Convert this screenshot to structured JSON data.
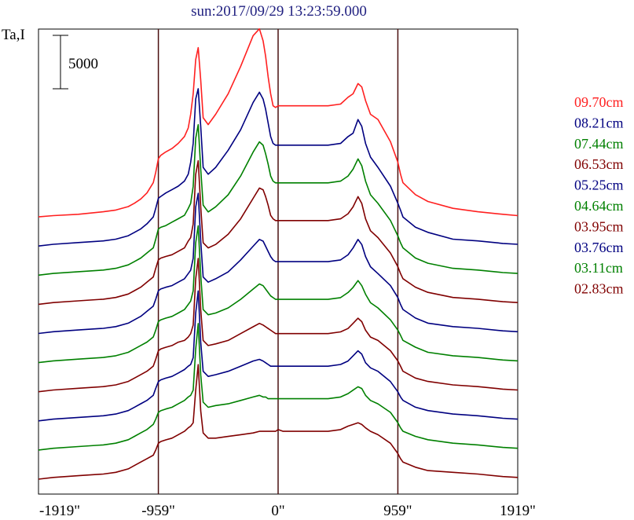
{
  "chart_data": {
    "type": "line",
    "title": "sun:2017/09/29 13:23:59.000",
    "ylabel": "Ta,I",
    "scale_bar_label": "5000",
    "scale_bar_value": 5000,
    "x_tick_labels": [
      "-1919\"",
      "-959\"",
      "0\"",
      "959\"",
      "1919\""
    ],
    "x_ticks": [
      -1919,
      -959,
      0,
      959,
      1919
    ],
    "xlim": [
      -1919,
      1919
    ],
    "vertical_lines_at": [
      -959,
      0,
      959
    ],
    "x": [
      -1919,
      -1800,
      -1600,
      -1400,
      -1300,
      -1200,
      -1150,
      -1100,
      -1050,
      -1000,
      -980,
      -959,
      -940,
      -900,
      -850,
      -800,
      -750,
      -720,
      -700,
      -680,
      -660,
      -640,
      -620,
      -600,
      -560,
      -500,
      -400,
      -300,
      -200,
      -150,
      -120,
      -100,
      -80,
      -60,
      -40,
      -20,
      0,
      40,
      100,
      200,
      300,
      400,
      500,
      560,
      600,
      640,
      670,
      700,
      740,
      800,
      900,
      959,
      980,
      1000,
      1100,
      1200,
      1400,
      1600,
      1800,
      1919
    ],
    "series": [
      {
        "name": "09.70cm",
        "color": "#ff2020",
        "y": [
          0,
          120,
          240,
          480,
          640,
          960,
          1280,
          1680,
          2240,
          3200,
          4160,
          5440,
          5760,
          6080,
          6400,
          6880,
          7520,
          8320,
          9600,
          11520,
          14720,
          15840,
          12800,
          9280,
          8640,
          9600,
          11520,
          14080,
          16960,
          17600,
          16480,
          15040,
          13120,
          11520,
          10400,
          10240,
          10400,
          10400,
          10400,
          10400,
          10400,
          10400,
          10560,
          11200,
          11520,
          12480,
          12160,
          10880,
          9600,
          9120,
          7040,
          5120,
          4000,
          3200,
          2080,
          1440,
          800,
          480,
          240,
          120
        ]
      },
      {
        "name": "08.21cm",
        "color": "#000080",
        "y": [
          0,
          160,
          320,
          480,
          640,
          960,
          1280,
          1600,
          2080,
          2720,
          3520,
          4480,
          4640,
          4960,
          5280,
          5600,
          6080,
          6720,
          7840,
          9600,
          13760,
          14720,
          11200,
          7360,
          6720,
          7360,
          8960,
          10880,
          13440,
          14400,
          13760,
          12800,
          11520,
          10240,
          9600,
          9440,
          9440,
          9440,
          9440,
          9440,
          9440,
          9440,
          9600,
          10240,
          10560,
          11840,
          11200,
          9600,
          8320,
          7360,
          5600,
          4000,
          3360,
          2720,
          1760,
          1280,
          640,
          480,
          240,
          160
        ]
      },
      {
        "name": "07.44cm",
        "color": "#008000",
        "y": [
          0,
          160,
          320,
          480,
          640,
          960,
          1280,
          1600,
          2080,
          2560,
          3360,
          4320,
          4480,
          4640,
          4960,
          5280,
          5600,
          6240,
          6720,
          8320,
          12800,
          14080,
          9920,
          6560,
          5920,
          6400,
          7520,
          9280,
          11520,
          12480,
          12160,
          11360,
          10400,
          9280,
          8800,
          8640,
          8640,
          8640,
          8640,
          8640,
          8640,
          8640,
          8800,
          9280,
          9920,
          10880,
          10240,
          8800,
          7520,
          6720,
          5120,
          3680,
          3040,
          2560,
          1600,
          1120,
          640,
          480,
          240,
          160
        ]
      },
      {
        "name": "06.53cm",
        "color": "#800000",
        "y": [
          0,
          160,
          320,
          480,
          640,
          960,
          1280,
          1600,
          2080,
          2560,
          3360,
          4160,
          4320,
          4480,
          4640,
          4960,
          5280,
          5920,
          6240,
          7520,
          12160,
          13440,
          9120,
          5760,
          5280,
          5600,
          6560,
          8000,
          9920,
          10880,
          10720,
          10080,
          9280,
          8320,
          8000,
          7840,
          7840,
          7840,
          7840,
          7840,
          7840,
          7840,
          8000,
          8480,
          9120,
          10080,
          9440,
          8000,
          6880,
          6240,
          4800,
          3520,
          2880,
          2400,
          1600,
          1120,
          640,
          480,
          240,
          160
        ]
      },
      {
        "name": "05.25cm",
        "color": "#000080",
        "y": [
          0,
          160,
          320,
          480,
          640,
          960,
          1280,
          1600,
          2080,
          2560,
          3200,
          4000,
          4160,
          4320,
          4480,
          4800,
          5120,
          5600,
          5920,
          7040,
          11840,
          13120,
          8640,
          5280,
          4800,
          5120,
          5760,
          6880,
          8160,
          8800,
          8640,
          8160,
          7680,
          7200,
          6880,
          6720,
          6720,
          6720,
          6720,
          6720,
          6720,
          6720,
          6880,
          7360,
          8000,
          8800,
          8320,
          7200,
          6240,
          5600,
          4480,
          3360,
          2720,
          2240,
          1440,
          960,
          640,
          480,
          240,
          160
        ]
      },
      {
        "name": "04.64cm",
        "color": "#008000",
        "y": [
          0,
          160,
          320,
          480,
          640,
          960,
          1280,
          1600,
          1920,
          2400,
          3040,
          3840,
          4000,
          4160,
          4320,
          4640,
          4960,
          5440,
          5760,
          6720,
          11200,
          12800,
          8160,
          4960,
          4480,
          4640,
          5120,
          5920,
          6880,
          7360,
          7200,
          6880,
          6560,
          6240,
          6080,
          5920,
          5920,
          5920,
          5920,
          5920,
          5920,
          5920,
          6080,
          6560,
          7040,
          7680,
          7200,
          6400,
          5600,
          5120,
          4000,
          3040,
          2560,
          2080,
          1440,
          960,
          640,
          480,
          240,
          160
        ]
      },
      {
        "name": "03.95cm",
        "color": "#800000",
        "y": [
          0,
          160,
          320,
          480,
          640,
          960,
          1280,
          1600,
          1920,
          2400,
          3040,
          3840,
          4000,
          4160,
          4320,
          4640,
          4800,
          5120,
          5440,
          6240,
          10560,
          12480,
          7680,
          4800,
          4320,
          4480,
          4800,
          5440,
          6080,
          6400,
          6240,
          6080,
          5920,
          5760,
          5600,
          5440,
          5440,
          5440,
          5440,
          5440,
          5440,
          5440,
          5600,
          5920,
          6400,
          6880,
          6560,
          5760,
          5120,
          4800,
          3840,
          2880,
          2400,
          1920,
          1280,
          960,
          640,
          480,
          240,
          160
        ]
      },
      {
        "name": "03.76cm",
        "color": "#000080",
        "y": [
          0,
          160,
          320,
          480,
          640,
          960,
          1280,
          1600,
          1920,
          2400,
          3040,
          3680,
          3840,
          4000,
          4160,
          4480,
          4800,
          5120,
          5280,
          5920,
          10080,
          12160,
          7360,
          4640,
          4160,
          4320,
          4640,
          5120,
          5600,
          5760,
          5600,
          5440,
          5280,
          5120,
          5120,
          5120,
          5120,
          5120,
          5120,
          5120,
          5120,
          5120,
          5280,
          5600,
          6080,
          6560,
          6240,
          5440,
          4960,
          4640,
          3680,
          2720,
          2240,
          1920,
          1280,
          960,
          640,
          480,
          240,
          160
        ]
      },
      {
        "name": "03.11cm",
        "color": "#008000",
        "y": [
          0,
          160,
          320,
          480,
          640,
          960,
          1280,
          1600,
          1920,
          2400,
          2880,
          3520,
          3680,
          3840,
          4000,
          4320,
          4640,
          4960,
          5120,
          5600,
          9440,
          11840,
          7040,
          4480,
          4000,
          4160,
          4320,
          4640,
          4960,
          5120,
          4960,
          4960,
          4800,
          4800,
          4800,
          4800,
          4800,
          4800,
          4800,
          4800,
          4800,
          4800,
          4960,
          5280,
          5600,
          5920,
          5760,
          5120,
          4640,
          4320,
          3520,
          2560,
          2080,
          1760,
          1280,
          960,
          640,
          480,
          240,
          160
        ]
      },
      {
        "name": "02.83cm",
        "color": "#800000",
        "y": [
          0,
          160,
          320,
          480,
          640,
          960,
          1280,
          1600,
          1920,
          2240,
          2720,
          3360,
          3520,
          3680,
          3840,
          4160,
          4480,
          4800,
          4960,
          5280,
          8320,
          10720,
          6400,
          4320,
          3840,
          3840,
          4000,
          4160,
          4320,
          4480,
          4480,
          4480,
          4480,
          4480,
          4480,
          4480,
          4640,
          4480,
          4480,
          4480,
          4480,
          4480,
          4640,
          4960,
          5120,
          5280,
          5120,
          4800,
          4480,
          4160,
          3360,
          2400,
          1920,
          1600,
          1120,
          800,
          640,
          480,
          240,
          160
        ]
      }
    ]
  }
}
